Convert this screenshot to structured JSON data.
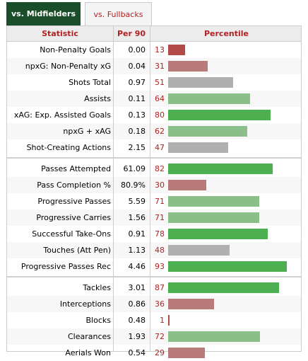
{
  "tabs": [
    {
      "label": "vs. Midfielders",
      "active": true
    },
    {
      "label": "vs. Fullbacks",
      "active": false
    }
  ],
  "header": {
    "statistic": "Statistic",
    "per90": "Per 90",
    "percentile": "Percentile"
  },
  "colors": {
    "high": "#4caf50",
    "mid_high": "#8bbf8a",
    "neutral": "#b0b0b0",
    "low": "#b97a7a",
    "very_low": "#b24a4a"
  },
  "groups": [
    [
      {
        "stat": "Non-Penalty Goals",
        "per90": "0.00",
        "percentile": 13
      },
      {
        "stat": "npxG: Non-Penalty xG",
        "per90": "0.04",
        "percentile": 31
      },
      {
        "stat": "Shots Total",
        "per90": "0.97",
        "percentile": 51
      },
      {
        "stat": "Assists",
        "per90": "0.11",
        "percentile": 64
      },
      {
        "stat": "xAG: Exp. Assisted Goals",
        "per90": "0.13",
        "percentile": 80
      },
      {
        "stat": "npxG + xAG",
        "per90": "0.18",
        "percentile": 62
      },
      {
        "stat": "Shot-Creating Actions",
        "per90": "2.15",
        "percentile": 47
      }
    ],
    [
      {
        "stat": "Passes Attempted",
        "per90": "61.09",
        "percentile": 82
      },
      {
        "stat": "Pass Completion %",
        "per90": "80.9%",
        "percentile": 30
      },
      {
        "stat": "Progressive Passes",
        "per90": "5.59",
        "percentile": 71
      },
      {
        "stat": "Progressive Carries",
        "per90": "1.56",
        "percentile": 71
      },
      {
        "stat": "Successful Take-Ons",
        "per90": "0.91",
        "percentile": 78
      },
      {
        "stat": "Touches (Att Pen)",
        "per90": "1.13",
        "percentile": 48
      },
      {
        "stat": "Progressive Passes Rec",
        "per90": "4.46",
        "percentile": 93
      }
    ],
    [
      {
        "stat": "Tackles",
        "per90": "3.01",
        "percentile": 87
      },
      {
        "stat": "Interceptions",
        "per90": "0.86",
        "percentile": 36
      },
      {
        "stat": "Blocks",
        "per90": "0.48",
        "percentile": 1
      },
      {
        "stat": "Clearances",
        "per90": "1.93",
        "percentile": 72
      },
      {
        "stat": "Aerials Won",
        "per90": "0.54",
        "percentile": 29
      }
    ]
  ]
}
